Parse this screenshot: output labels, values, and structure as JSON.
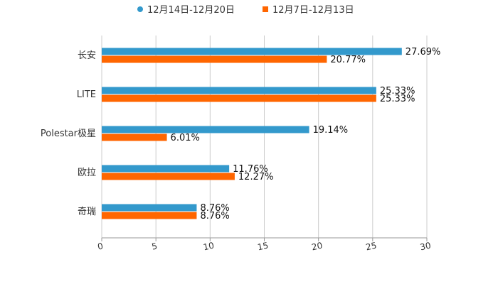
{
  "chart_data": {
    "type": "bar",
    "orientation": "horizontal",
    "title": "",
    "xlabel": "",
    "ylabel": "",
    "categories": [
      "长安",
      "LITE",
      "Polestar极星",
      "欧拉",
      "奇瑞"
    ],
    "series": [
      {
        "name": "12月14日-12月20日",
        "color": "#3399cc",
        "values": [
          27.69,
          25.33,
          19.14,
          11.76,
          8.76
        ],
        "labels": [
          "27.69%",
          "25.33%",
          "19.14%",
          "11.76%",
          "8.76%"
        ]
      },
      {
        "name": "12月7日-12月13日",
        "color": "#ff6600",
        "values": [
          20.77,
          25.33,
          6.01,
          12.27,
          8.76
        ],
        "labels": [
          "20.77%",
          "25.33%",
          "6.01%",
          "12.27%",
          "8.76%"
        ]
      }
    ],
    "xlim": [
      0,
      30
    ],
    "xticks": [
      "0",
      "5",
      "10",
      "15",
      "20",
      "25",
      "30"
    ],
    "grid": true,
    "legend_position": "top"
  }
}
